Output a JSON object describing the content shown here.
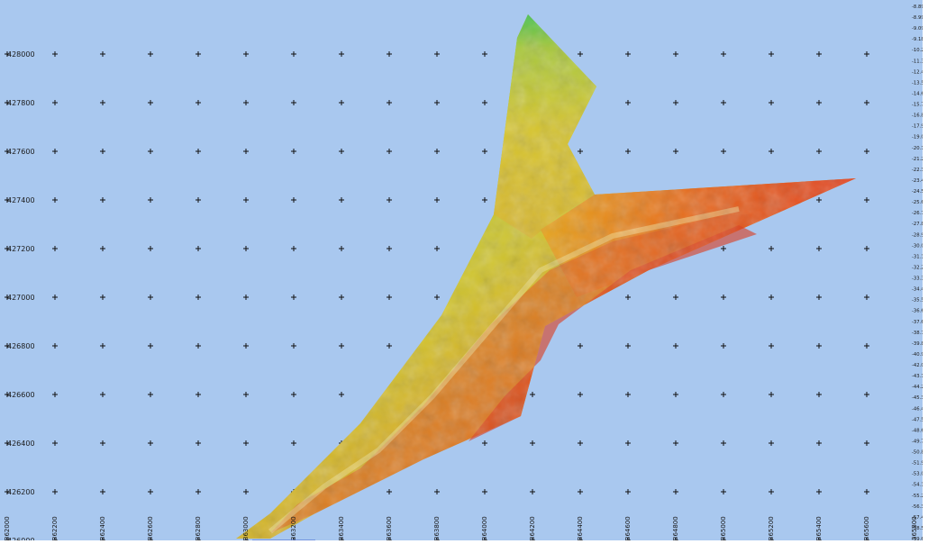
{
  "map": {
    "background_color": "#a9c8ef",
    "grid_marker": "+",
    "y_axis_labels": [
      "428000",
      "427800",
      "427600",
      "427400",
      "427200",
      "427000",
      "426800",
      "426600",
      "426400",
      "426200",
      "426000"
    ],
    "x_axis_labels": [
      "362000",
      "362200",
      "362400",
      "362600",
      "362800",
      "363000",
      "363200",
      "363400",
      "363600",
      "363800",
      "364000",
      "364200",
      "364400",
      "364600",
      "364800",
      "365000",
      "365200",
      "365400",
      "365600",
      "365800"
    ],
    "scale_bar_values": [
      "-8.897",
      "-8.993",
      "-9.090",
      "-9.187",
      "-10.283",
      "-11.380",
      "-12.476",
      "-13.573",
      "-14.670",
      "-15.766",
      "-16.863",
      "-17.959",
      "-19.056",
      "-20.153",
      "-21.249",
      "-22.346",
      "-23.443",
      "-24.539",
      "-25.636",
      "-26.732",
      "-27.829",
      "-28.926",
      "-30.022",
      "-31.119",
      "-32.215",
      "-33.312",
      "-34.409",
      "-35.505",
      "-36.602",
      "-37.698",
      "-38.795",
      "-39.892",
      "-40.988",
      "-42.085",
      "-43.181",
      "-44.278",
      "-45.375",
      "-46.471",
      "-47.568",
      "-48.664",
      "-49.761",
      "-50.858",
      "-51.954",
      "-53.051",
      "-54.148",
      "-55.244",
      "-56.341",
      "-57.437",
      "-58.534",
      "-59.631"
    ],
    "depth_colors": {
      "shallow": "#2fbf4a",
      "mid": "#d2c42a",
      "deep": "#e03a1e"
    }
  }
}
